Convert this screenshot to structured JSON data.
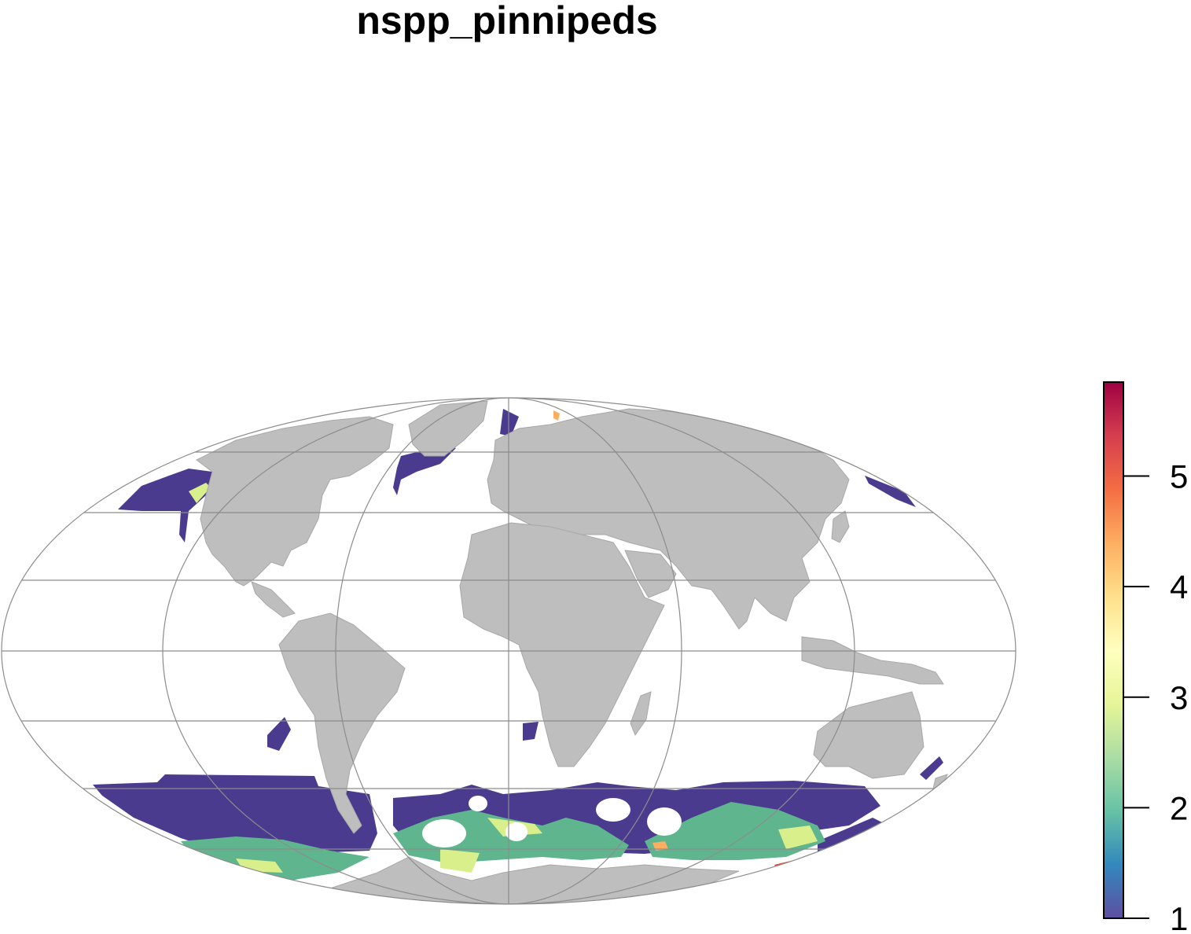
{
  "title": "nspp_pinnipeds",
  "colors": {
    "land": "#bebebe",
    "land_border": "#a8a8a8",
    "graticule": "#8c8c8c",
    "ocean": "#ffffff"
  },
  "legend": {
    "min": 1,
    "max": 5.85,
    "ticks": [
      "1",
      "2",
      "3",
      "4",
      "5"
    ],
    "palette": [
      "#5e4fa2",
      "#3288bd",
      "#66c2a5",
      "#abdda4",
      "#e6f598",
      "#ffffbf",
      "#fee08b",
      "#fdae61",
      "#f46d43",
      "#d53e4f",
      "#9e0142"
    ]
  },
  "map": {
    "projection": "Mollweide",
    "data_colors": {
      "low": "#4a3b8f",
      "mid": "#5fb68e",
      "midhigh": "#d9ef8b",
      "high": "#fdae61",
      "top": "#e8452f"
    }
  }
}
